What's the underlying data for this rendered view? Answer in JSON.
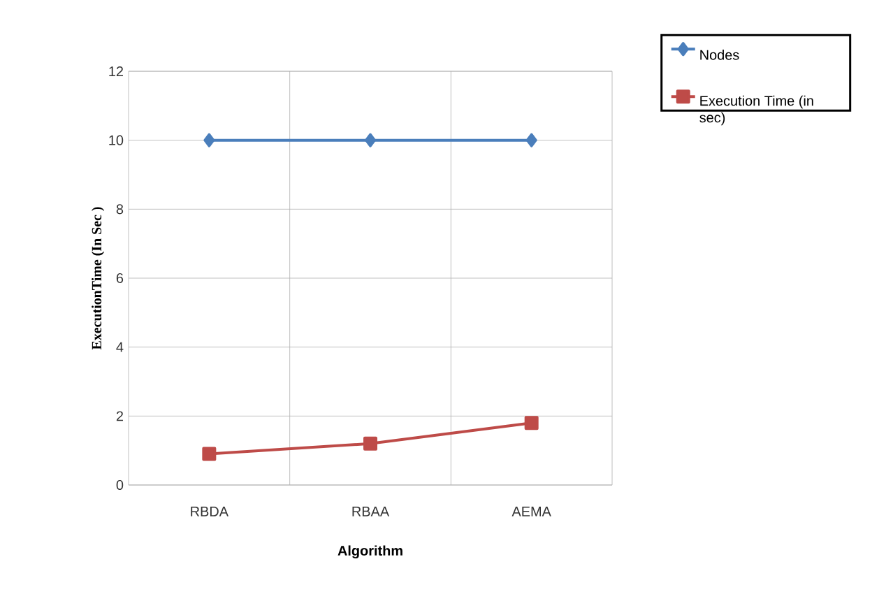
{
  "chart_data": {
    "type": "line",
    "xlabel": "Algorithm",
    "ylabel": "ExecutionTime (In Sec )",
    "categories": [
      "RBDA",
      "RBAA",
      "AEMA"
    ],
    "series": [
      {
        "name": "Nodes",
        "color": "#4a7ebb",
        "marker": "diamond",
        "values": [
          10,
          10,
          10
        ]
      },
      {
        "name": "Execution Time  (in sec)",
        "color": "#be4b48",
        "marker": "square",
        "values": [
          0.9,
          1.2,
          1.8
        ]
      }
    ],
    "ylim": [
      0,
      12
    ],
    "yticks": [
      0,
      2,
      4,
      6,
      8,
      10,
      12
    ],
    "grid": true,
    "legend": "top right"
  }
}
